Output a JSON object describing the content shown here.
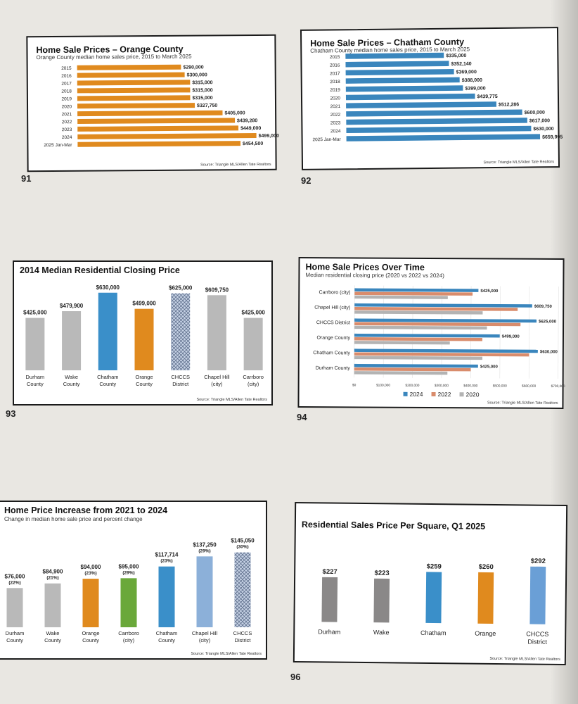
{
  "page_numbers": [
    "91",
    "92",
    "93",
    "94",
    "96"
  ],
  "chart_data": [
    {
      "id": "c91",
      "type": "bar",
      "orientation": "horizontal",
      "title": "Home Sale Prices – Orange County",
      "subtitle": "Orange County median home sales price, 2015 to March 2025",
      "source": "Source: Triangle MLS/Allen Tate Realtors",
      "color": "#e08a1e",
      "categories": [
        "2015",
        "2016",
        "2017",
        "2018",
        "2019",
        "2020",
        "2021",
        "2022",
        "2023",
        "2024",
        "2025 Jan-Mar"
      ],
      "values": [
        290000,
        300000,
        315000,
        315000,
        315000,
        327750,
        405000,
        439280,
        449000,
        499000,
        454500
      ],
      "labels": [
        "$290,000",
        "$300,000",
        "$315,000",
        "$315,000",
        "$315,000",
        "$327,750",
        "$405,000",
        "$439,280",
        "$449,000",
        "$499,000",
        "$454,500"
      ],
      "xlim": [
        0,
        520000
      ]
    },
    {
      "id": "c92",
      "type": "bar",
      "orientation": "horizontal",
      "title": "Home Sale Prices – Chatham County",
      "subtitle": "Chatham County median home sales price, 2015 to March 2025",
      "source": "Source: Triangle MLS/Allen Tate Realtors",
      "color": "#3a86bd",
      "categories": [
        "2015",
        "2016",
        "2017",
        "2018",
        "2019",
        "2020",
        "2021",
        "2022",
        "2023",
        "2024",
        "2025 Jan-Mar"
      ],
      "values": [
        335000,
        352140,
        369000,
        388000,
        399000,
        439775,
        512286,
        600000,
        617000,
        630000,
        659995
      ],
      "labels": [
        "$335,000",
        "$352,140",
        "$369,000",
        "$388,000",
        "$399,000",
        "$439,775",
        "$512,286",
        "$600,000",
        "$617,000",
        "$630,000",
        "$659,995"
      ],
      "xlim": [
        0,
        690000
      ]
    },
    {
      "id": "c93",
      "type": "bar",
      "title": "2014 Median Residential Closing Price",
      "source": "Source: Triangle MLS/Allen Tate Realtors",
      "categories": [
        "Durham County",
        "Wake County",
        "Chatham County",
        "Orange County",
        "CHCCS District",
        "Chapel Hill (city)",
        "Carrboro (city)"
      ],
      "values": [
        425000,
        479900,
        630000,
        499000,
        625000,
        609750,
        425000
      ],
      "labels": [
        "$425,000",
        "$479,900",
        "$630,000",
        "$499,000",
        "$625,000",
        "$609,750",
        "$425,000"
      ],
      "colors": [
        "#b9b9b9",
        "#b9b9b9",
        "#3a8fc9",
        "#e08a1e",
        "pattern",
        "#b9b9b9",
        "#b9b9b9"
      ],
      "ylim": [
        0,
        640000
      ]
    },
    {
      "id": "c94",
      "type": "bar",
      "orientation": "horizontal",
      "title": "Home Sale Prices Over Time",
      "subtitle": "Median residential closing price (2020 vs 2022 vs 2024)",
      "source": "Source: Triangle MLS/Allen Tate Realtors",
      "categories": [
        "Carrboro (city)",
        "Chapel Hill (city)",
        "CHCCS District",
        "Orange County",
        "Chatham County",
        "Durham County"
      ],
      "series": [
        {
          "name": "2024",
          "color": "#3a86bd",
          "values": [
            425000,
            609750,
            625000,
            499000,
            630000,
            425000
          ]
        },
        {
          "name": "2022",
          "color": "#d98c6c",
          "values": [
            405000,
            560000,
            570000,
            439280,
            600000,
            400000
          ]
        },
        {
          "name": "2020",
          "color": "#b3b3b3",
          "values": [
            320000,
            440000,
            455000,
            327750,
            439775,
            320000
          ]
        }
      ],
      "data_labels": [
        "$425,000",
        "$609,750",
        "$625,000",
        "$499,000",
        "$630,000",
        "$425,000"
      ],
      "x_ticks": [
        "$0",
        "$100,000",
        "$200,000",
        "$300,000",
        "$400,000",
        "$500,000",
        "$600,000",
        "$700,000"
      ],
      "xlim": [
        0,
        700000
      ]
    },
    {
      "id": "c95",
      "type": "bar",
      "title": "Home Price Increase from 2021 to 2024",
      "subtitle": "Change in median home sale price and percent change",
      "source": "Source: Triangle MLS/Allen Tate Realtors",
      "categories": [
        "Durham County",
        "Wake County",
        "Orange County",
        "Carrboro (city)",
        "Chatham County",
        "Chapel Hill (city)",
        "CHCCS District"
      ],
      "values": [
        76000,
        84900,
        94000,
        95000,
        117714,
        137250,
        145050
      ],
      "labels": [
        "$76,000",
        "$84,900",
        "$94,000",
        "$95,000",
        "$117,714",
        "$137,250",
        "$145,050"
      ],
      "percents": [
        "(22%)",
        "(21%)",
        "(23%)",
        "(29%)",
        "(23%)",
        "(29%)",
        "(30%)"
      ],
      "colors": [
        "#b9b9b9",
        "#b9b9b9",
        "#e08a1e",
        "#6aa83a",
        "#3a8fc9",
        "#8cb0d9",
        "pattern"
      ],
      "ylim": [
        0,
        150000
      ]
    },
    {
      "id": "c96",
      "type": "bar",
      "title": "Residential Sales Price Per Square, Q1 2025",
      "source": "Source: Triangle MLS/Allen Tate Realtors",
      "categories": [
        "Durham",
        "Wake",
        "Chatham",
        "Orange",
        "CHCCS District"
      ],
      "values": [
        227,
        223,
        259,
        260,
        292
      ],
      "labels": [
        "$227",
        "$223",
        "$259",
        "$260",
        "$292"
      ],
      "colors": [
        "#8a8888",
        "#8a8888",
        "#3a8fc9",
        "#e08a1e",
        "#6a9fd6"
      ],
      "ylim": [
        0,
        300
      ]
    }
  ]
}
